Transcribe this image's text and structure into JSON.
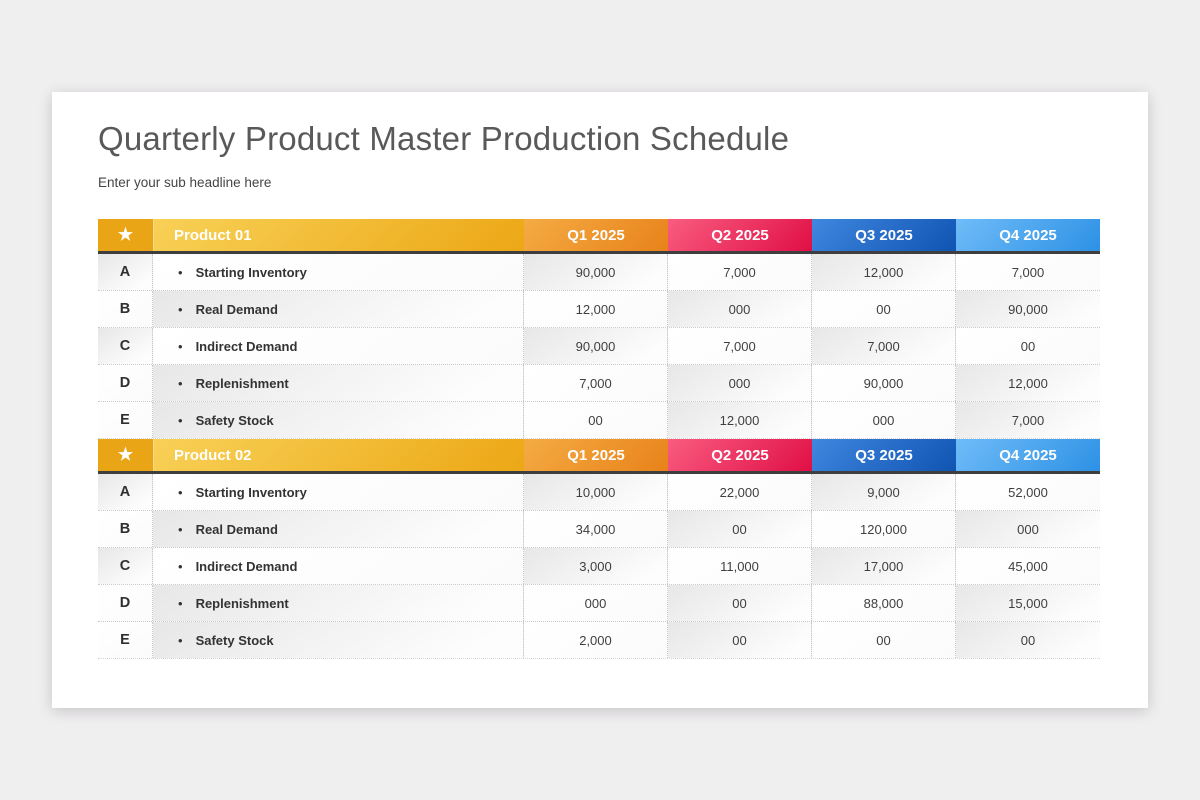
{
  "title": "Quarterly Product Master Production Schedule",
  "subtitle": "Enter your sub headline here",
  "quarters": [
    "Q1 2025",
    "Q2 2025",
    "Q3 2025",
    "Q4 2025"
  ],
  "star_icon": "★",
  "bullet_icon": "•",
  "colors": {
    "page_bg": "#f0eff0",
    "card_bg": "#ffffff",
    "header_underline": "#3e3e3e",
    "star_cell": "#eaa517",
    "product_cell": [
      "#f8d157",
      "#eca715"
    ],
    "q1": [
      "#f5ab43",
      "#e8821a"
    ],
    "q2": [
      "#f95c80",
      "#e00f46"
    ],
    "q3": [
      "#3f87df",
      "#1054b2"
    ],
    "q4": [
      "#6fbcf8",
      "#2d91e5"
    ]
  },
  "products": [
    {
      "name": "Product 01",
      "rows": [
        {
          "letter": "A",
          "label": "Starting Inventory",
          "values": [
            "90,000",
            "7,000",
            "12,000",
            "7,000"
          ]
        },
        {
          "letter": "B",
          "label": "Real Demand",
          "values": [
            "12,000",
            "000",
            "00",
            "90,000"
          ]
        },
        {
          "letter": "C",
          "label": "Indirect Demand",
          "values": [
            "90,000",
            "7,000",
            "7,000",
            "00"
          ]
        },
        {
          "letter": "D",
          "label": "Replenishment",
          "values": [
            "7,000",
            "000",
            "90,000",
            "12,000"
          ]
        },
        {
          "letter": "E",
          "label": "Safety Stock",
          "values": [
            "00",
            "12,000",
            "000",
            "7,000"
          ]
        }
      ]
    },
    {
      "name": "Product 02",
      "rows": [
        {
          "letter": "A",
          "label": "Starting Inventory",
          "values": [
            "10,000",
            "22,000",
            "9,000",
            "52,000"
          ]
        },
        {
          "letter": "B",
          "label": "Real Demand",
          "values": [
            "34,000",
            "00",
            "120,000",
            "000"
          ]
        },
        {
          "letter": "C",
          "label": "Indirect Demand",
          "values": [
            "3,000",
            "11,000",
            "17,000",
            "45,000"
          ]
        },
        {
          "letter": "D",
          "label": "Replenishment",
          "values": [
            "000",
            "00",
            "88,000",
            "15,000"
          ]
        },
        {
          "letter": "E",
          "label": "Safety Stock",
          "values": [
            "2,000",
            "00",
            "00",
            "00"
          ]
        }
      ]
    }
  ]
}
